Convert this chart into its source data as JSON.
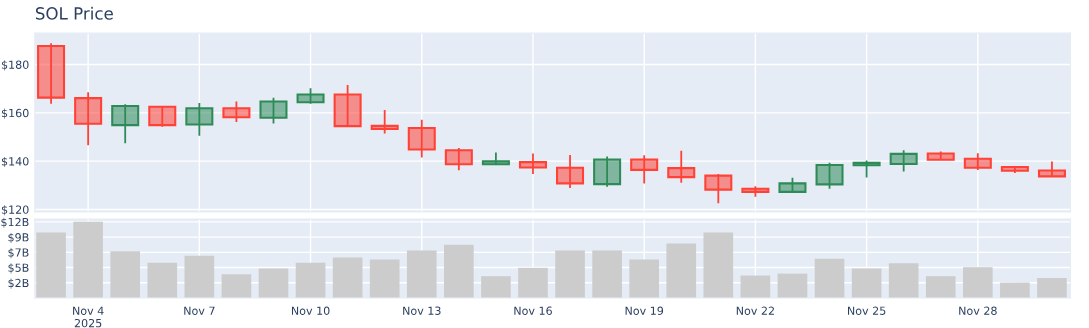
{
  "chart_data": [
    {
      "type": "candlestick",
      "title": "SOL Price",
      "x": [
        "2025-11-03",
        "2025-11-04",
        "2025-11-05",
        "2025-11-06",
        "2025-11-07",
        "2025-11-08",
        "2025-11-09",
        "2025-11-10",
        "2025-11-11",
        "2025-11-12",
        "2025-11-13",
        "2025-11-14",
        "2025-11-15",
        "2025-11-16",
        "2025-11-17",
        "2025-11-18",
        "2025-11-19",
        "2025-11-20",
        "2025-11-21",
        "2025-11-22",
        "2025-11-23",
        "2025-11-24",
        "2025-11-25",
        "2025-11-26",
        "2025-11-27",
        "2025-11-28",
        "2025-11-29",
        "2025-11-30"
      ],
      "ohlc": [
        [
          187.7,
          188.8,
          163.8,
          166.3
        ],
        [
          166.1,
          168.5,
          146.6,
          155.5
        ],
        [
          154.9,
          163.6,
          147.4,
          162.8
        ],
        [
          162.5,
          162.8,
          154.2,
          154.9
        ],
        [
          155.2,
          164.1,
          150.5,
          161.9
        ],
        [
          161.9,
          164.7,
          156.2,
          158.2
        ],
        [
          158.0,
          166.3,
          155.6,
          164.7
        ],
        [
          164.4,
          170.2,
          163.8,
          167.6
        ],
        [
          167.6,
          171.5,
          154.5,
          154.5
        ],
        [
          154.6,
          161.2,
          151.5,
          153.3
        ],
        [
          153.7,
          157.1,
          141.5,
          144.8
        ],
        [
          144.5,
          145.4,
          136.2,
          138.7
        ],
        [
          138.7,
          143.6,
          138.7,
          139.9
        ],
        [
          139.6,
          143.2,
          134.7,
          137.4
        ],
        [
          137.3,
          142.6,
          128.9,
          130.8
        ],
        [
          130.5,
          141.9,
          129.4,
          140.7
        ],
        [
          140.7,
          142.4,
          130.8,
          136.4
        ],
        [
          137.1,
          144.3,
          131.1,
          133.4
        ],
        [
          134.0,
          134.7,
          122.6,
          128.2
        ],
        [
          128.6,
          129.6,
          125.3,
          127.3
        ],
        [
          127.3,
          133.1,
          127.3,
          130.8
        ],
        [
          130.4,
          139.3,
          128.6,
          138.4
        ],
        [
          138.3,
          140.3,
          133.2,
          139.3
        ],
        [
          138.8,
          144.5,
          135.7,
          143.0
        ],
        [
          143.2,
          144.0,
          140.6,
          140.6
        ],
        [
          141.0,
          143.3,
          136.3,
          137.3
        ],
        [
          137.6,
          137.8,
          135.1,
          136.0
        ],
        [
          136.1,
          139.9,
          133.7,
          133.7
        ]
      ],
      "colors": [
        "#ff4136",
        "#ff4136",
        "#2e8b57",
        "#ff4136",
        "#2e8b57",
        "#ff4136",
        "#2e8b57",
        "#2e8b57",
        "#ff4136",
        "#ff4136",
        "#ff4136",
        "#ff4136",
        "#2e8b57",
        "#ff4136",
        "#ff4136",
        "#2e8b57",
        "#ff4136",
        "#ff4136",
        "#ff4136",
        "#ff4136",
        "#2e8b57",
        "#2e8b57",
        "#2e8b57",
        "#2e8b57",
        "#ff4136",
        "#ff4136",
        "#ff4136",
        "#ff4136"
      ],
      "xlim": [
        "2025-11-02T13:30",
        "2025-11-30T12:00"
      ],
      "xticks": [
        {
          "value": "2025-11-04",
          "label": null
        },
        {
          "value": "2025-11-07",
          "label": null
        },
        {
          "value": "2025-11-10",
          "label": null
        },
        {
          "value": "2025-11-13",
          "label": null
        },
        {
          "value": "2025-11-16",
          "label": null
        },
        {
          "value": "2025-11-19",
          "label": null
        },
        {
          "value": "2025-11-22",
          "label": null
        },
        {
          "value": "2025-11-25",
          "label": null
        },
        {
          "value": "2025-11-28",
          "label": null
        }
      ],
      "ylim": [
        119,
        193
      ],
      "yticks": [
        {
          "value": 120,
          "label": "$120"
        },
        {
          "value": 140,
          "label": "$140"
        },
        {
          "value": 160,
          "label": "$160"
        },
        {
          "value": 180,
          "label": "$180"
        }
      ],
      "tick_labels": "y",
      "grid": true
    },
    {
      "type": "bar",
      "x": [
        "2025-11-03",
        "2025-11-04",
        "2025-11-05",
        "2025-11-06",
        "2025-11-07",
        "2025-11-08",
        "2025-11-09",
        "2025-11-10",
        "2025-11-11",
        "2025-11-12",
        "2025-11-13",
        "2025-11-14",
        "2025-11-15",
        "2025-11-16",
        "2025-11-17",
        "2025-11-18",
        "2025-11-19",
        "2025-11-20",
        "2025-11-21",
        "2025-11-22",
        "2025-11-23",
        "2025-11-24",
        "2025-11-25",
        "2025-11-26",
        "2025-11-27",
        "2025-11-28",
        "2025-11-29",
        "2025-11-30"
      ],
      "values": [
        10.2,
        11.9,
        7.3,
        5.5,
        6.6,
        3.7,
        4.6,
        5.5,
        6.3,
        6.0,
        7.4,
        8.3,
        3.4,
        4.7,
        7.4,
        7.4,
        6.0,
        8.5,
        10.2,
        3.5,
        3.8,
        6.1,
        4.6,
        5.4,
        3.4,
        4.8,
        2.4,
        3.1
      ],
      "color": "#cccccc",
      "xlim": [
        "2025-11-02T13:30",
        "2025-11-30T12:00"
      ],
      "xticks": [
        {
          "value": "2025-11-04",
          "label": "Nov 4\n2025"
        },
        {
          "value": "2025-11-07",
          "label": "Nov 7"
        },
        {
          "value": "2025-11-10",
          "label": "Nov 10"
        },
        {
          "value": "2025-11-13",
          "label": "Nov 13"
        },
        {
          "value": "2025-11-16",
          "label": "Nov 16"
        },
        {
          "value": "2025-11-19",
          "label": "Nov 19"
        },
        {
          "value": "2025-11-22",
          "label": "Nov 22"
        },
        {
          "value": "2025-11-25",
          "label": "Nov 25"
        },
        {
          "value": "2025-11-28",
          "label": "Nov 28"
        }
      ],
      "ylim": [
        0,
        12.3
      ],
      "yticks": [
        {
          "value": 2.37,
          "label": "$2B"
        },
        {
          "value": 4.75,
          "label": "$5B"
        },
        {
          "value": 7.12,
          "label": "$7B"
        },
        {
          "value": 9.49,
          "label": "$9B"
        },
        {
          "value": 11.87,
          "label": "$12B"
        }
      ],
      "grid": true
    }
  ]
}
